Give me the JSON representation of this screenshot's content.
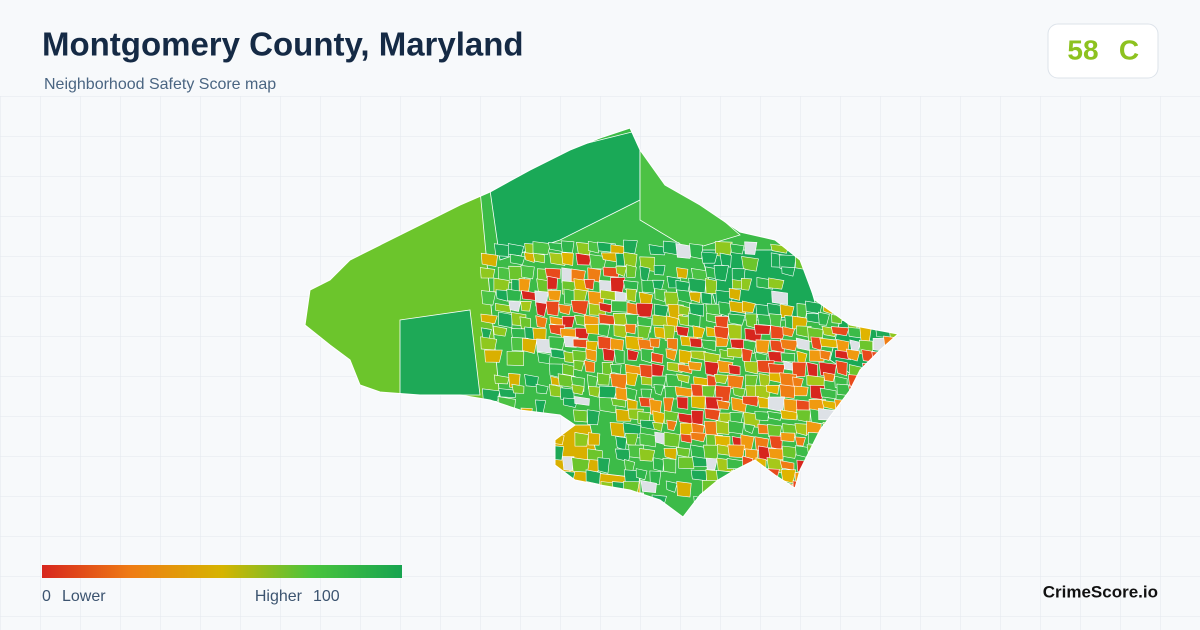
{
  "header": {
    "title": "Montgomery County, Maryland",
    "subtitle": "Neighborhood Safety Score map"
  },
  "score": {
    "value": 58,
    "grade": "C"
  },
  "legend": {
    "min": 0,
    "min_label": "Lower",
    "max_label": "Higher",
    "max": 100
  },
  "brand": "CrimeScore.io"
}
